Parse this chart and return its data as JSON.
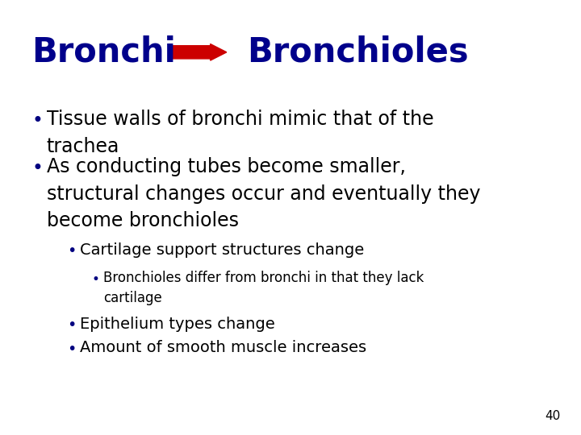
{
  "bg_color": "#ffffff",
  "title_left": "Bronchi",
  "title_right": "Bronchioles",
  "title_color": "#00008B",
  "arrow_color": "#CC0000",
  "separator_color": "#FFB6C1",
  "bullet_color": "#000080",
  "text_color": "#000000",
  "page_number": "40",
  "title_fontsize": 30,
  "bullet1_fontsize": 17,
  "bullet2_fontsize": 14,
  "bullet3_fontsize": 12,
  "page_fontsize": 11
}
